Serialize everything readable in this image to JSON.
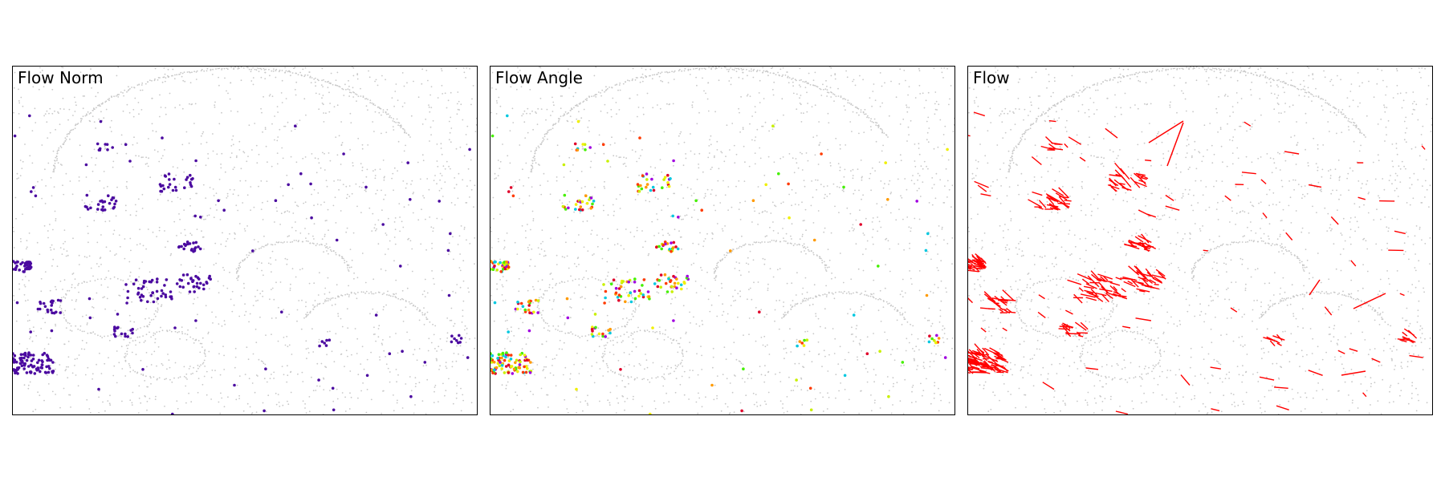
{
  "panels": [
    {
      "title": "Flow Norm"
    },
    {
      "title": "Flow Angle"
    },
    {
      "title": "Flow"
    }
  ],
  "colors": {
    "background_points": "#c8c8c8",
    "flow_norm": "#4b0aa0",
    "flow_arrows": "#ff0000",
    "angle_palette": [
      "#f0f000",
      "#c8f000",
      "#ff9a00",
      "#ff3a00",
      "#e0002a",
      "#a000e0",
      "#44f000",
      "#00c8e0"
    ]
  },
  "chart_data": {
    "type": "scatter",
    "title": "",
    "panels": [
      "Flow Norm",
      "Flow Angle",
      "Flow"
    ],
    "xlabel": "",
    "ylabel": "",
    "grid": false,
    "legend": "none"
  }
}
